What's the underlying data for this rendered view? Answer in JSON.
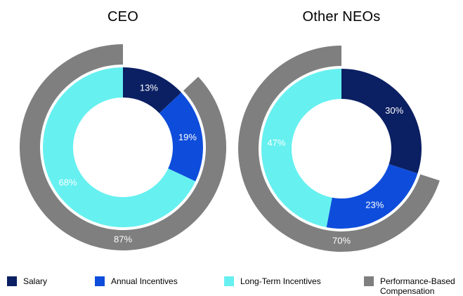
{
  "chart_data": [
    {
      "type": "donut",
      "title": "CEO",
      "unit": "%",
      "series": [
        {
          "name": "Salary",
          "value": 13,
          "color": "#0B1F63",
          "label": "13%"
        },
        {
          "name": "Annual Incentives",
          "value": 19,
          "color": "#0E4DDC",
          "label": "19%"
        },
        {
          "name": "Long-Term Incentives",
          "value": 68,
          "color": "#66F0F0",
          "label": "68%"
        }
      ],
      "outer_ring": {
        "name": "Performance-Based Compensation",
        "value": 87,
        "color": "#7F7F7F",
        "label": "87%"
      },
      "layout_hints": {
        "start_angle_deg": 0,
        "direction": "clockwise",
        "labels_color": "#FFFFFF"
      }
    },
    {
      "type": "donut",
      "title": "Other NEOs",
      "unit": "%",
      "series": [
        {
          "name": "Salary",
          "value": 30,
          "color": "#0B1F63",
          "label": "30%"
        },
        {
          "name": "Annual Incentives",
          "value": 23,
          "color": "#0E4DDC",
          "label": "23%"
        },
        {
          "name": "Long-Term Incentives",
          "value": 47,
          "color": "#66F0F0",
          "label": "47%"
        }
      ],
      "outer_ring": {
        "name": "Performance-Based Compensation",
        "value": 70,
        "color": "#7F7F7F",
        "label": "70%"
      },
      "layout_hints": {
        "start_angle_deg": 0,
        "direction": "clockwise",
        "labels_color": "#FFFFFF"
      }
    }
  ],
  "legend": {
    "position": "bottom",
    "items": [
      {
        "label": "Salary",
        "color": "#0B1F63"
      },
      {
        "label": "Annual Incentives",
        "color": "#0E4DDC"
      },
      {
        "label": "Long-Term Incentives",
        "color": "#66F0F0"
      },
      {
        "label": "Performance-Based Compensation",
        "color": "#7F7F7F"
      }
    ]
  },
  "colors": {
    "background": "#FFFFFF",
    "title_text": "#000000",
    "data_label_text": "#FFFFFF"
  }
}
